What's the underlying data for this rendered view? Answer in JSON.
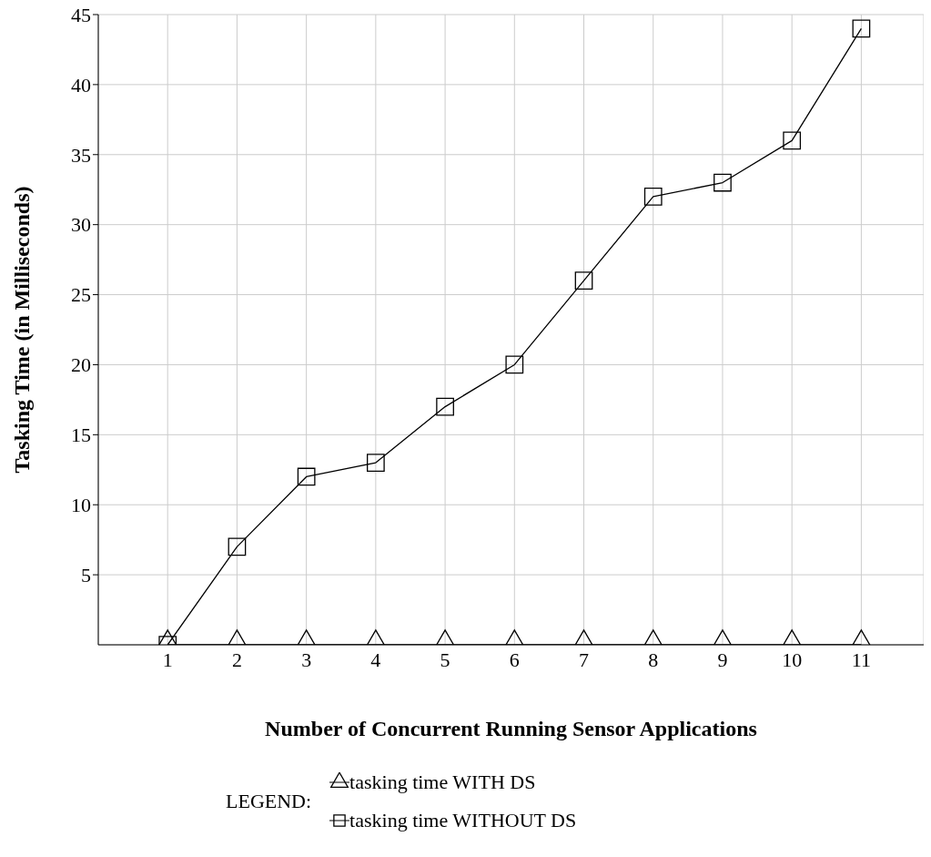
{
  "chart_data": {
    "type": "line",
    "xlabel": "Number of Concurrent Running Sensor Applications",
    "ylabel": "Tasking Time (in Milliseconds)",
    "legend_title": "LEGEND:",
    "legend": "bottom",
    "grid": true,
    "xlim": [
      0,
      11.9
    ],
    "xticks": [
      1,
      2,
      3,
      4,
      5,
      6,
      7,
      8,
      9,
      10,
      11
    ],
    "ylim": [
      0,
      45
    ],
    "yticks": [
      5,
      10,
      15,
      20,
      25,
      30,
      35,
      40,
      45
    ],
    "x": [
      1,
      2,
      3,
      4,
      5,
      6,
      7,
      8,
      9,
      10,
      11
    ],
    "series": [
      {
        "name": "tasking time WITH DS",
        "color": "#000000",
        "marker": "triangle",
        "values": [
          0,
          0,
          0,
          0,
          0,
          0,
          0,
          0,
          0,
          0,
          0
        ]
      },
      {
        "name": "tasking time WITHOUT DS",
        "color": "#000000",
        "marker": "square",
        "values": [
          0,
          7,
          12,
          13,
          17,
          20,
          26,
          32,
          33,
          36,
          44
        ]
      }
    ]
  }
}
